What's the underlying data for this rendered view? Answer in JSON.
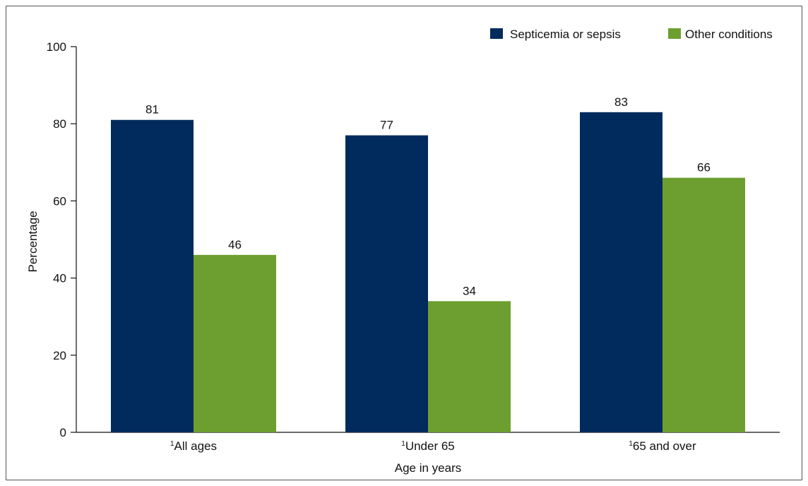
{
  "chart_data": {
    "type": "bar",
    "title": "",
    "xlabel": "Age in years",
    "ylabel": "Percentage",
    "ylim": [
      0,
      100
    ],
    "yticks": [
      0,
      20,
      40,
      60,
      80,
      100
    ],
    "categories": [
      {
        "sup": "1",
        "label": "All ages"
      },
      {
        "sup": "1",
        "label": "Under 65"
      },
      {
        "sup": "1",
        "label": "65 and over"
      }
    ],
    "series": [
      {
        "name": "Septicemia or sepsis",
        "color": "#002b5c",
        "values": [
          81,
          77,
          83
        ]
      },
      {
        "name": "Other conditions",
        "color": "#6d9e30",
        "values": [
          46,
          34,
          66
        ]
      }
    ],
    "legend_position": "top-right",
    "grid": false
  }
}
